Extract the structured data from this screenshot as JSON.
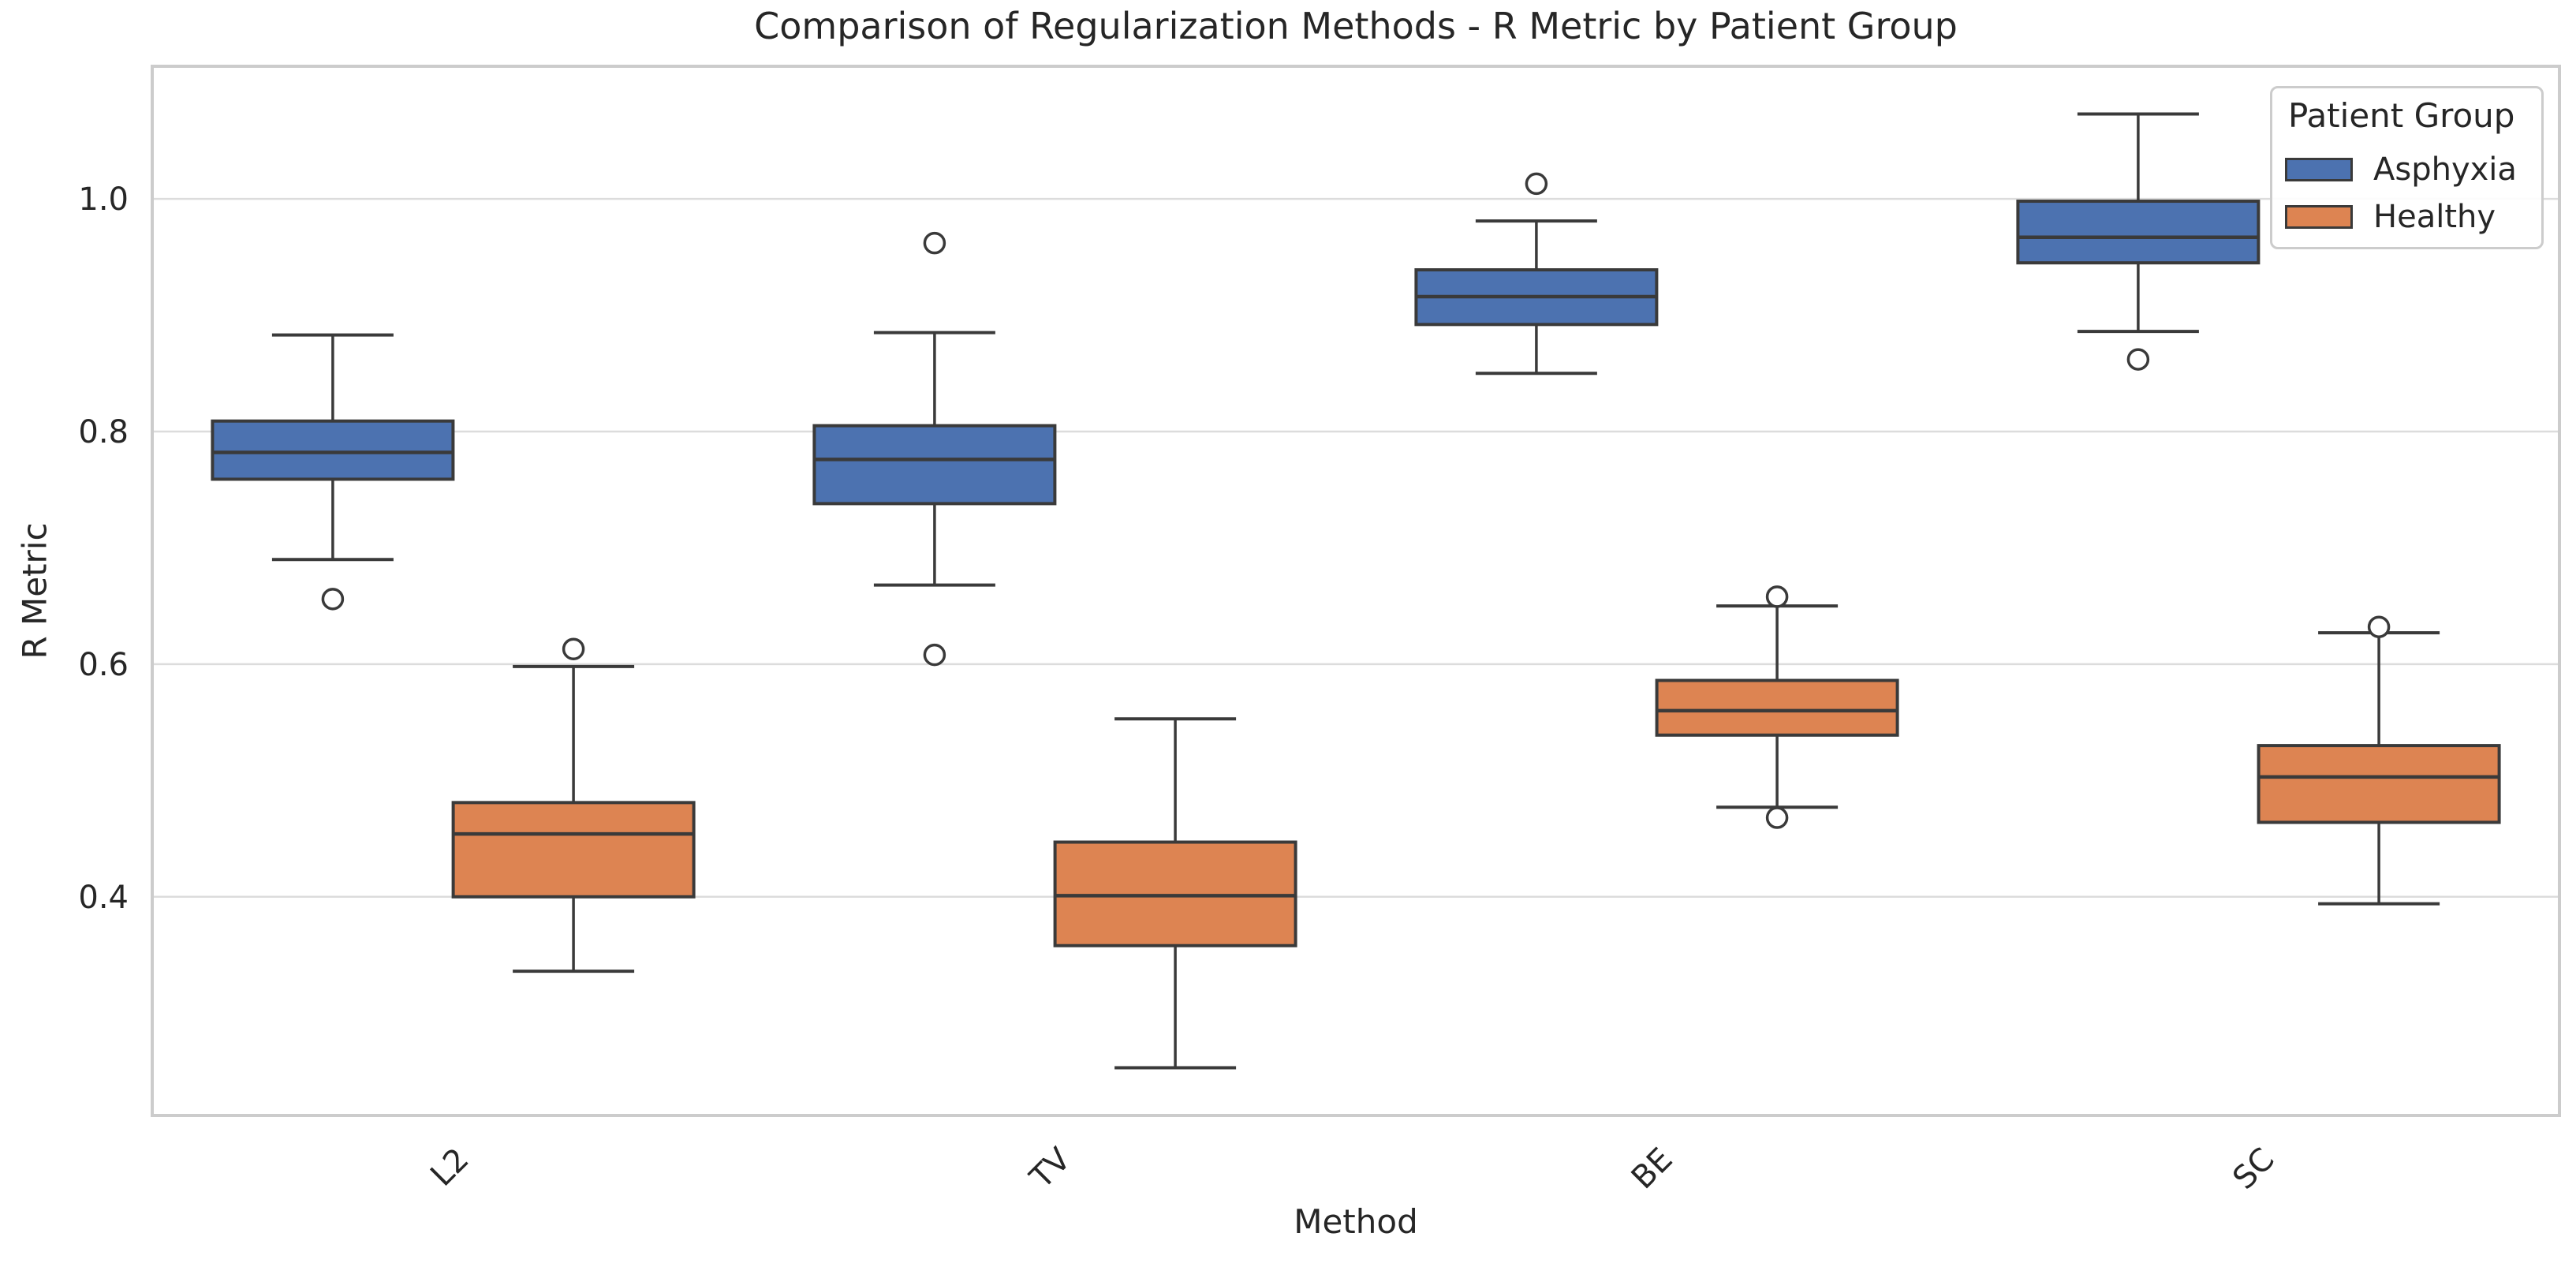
{
  "figure": {
    "background": "#FFFFFF"
  },
  "chart_data": {
    "type": "box",
    "title": "Comparison of Regularization Methods - R Metric by Patient Group",
    "xlabel": "Method",
    "ylabel": "R Metric",
    "categories": [
      "L2",
      "TV",
      "BE",
      "SC"
    ],
    "ylim": [
      0.212,
      1.114
    ],
    "yticks": [
      0.4,
      0.6,
      0.8,
      1.0
    ],
    "ytick_labels": [
      "0.4",
      "0.6",
      "0.8",
      "1.0"
    ],
    "grid": "horizontal-only",
    "legend": {
      "title": "Patient Group",
      "position": "upper-right",
      "entries": [
        {
          "label": "Asphyxia",
          "color": "#4C72B0"
        },
        {
          "label": "Healthy",
          "color": "#DD8452"
        }
      ]
    },
    "style": {
      "box_edge": "#3A3A3A",
      "grid_color": "#DCDCDC",
      "spine_color": "#CCCCCC",
      "text_color": "#262626",
      "background": "#FFFFFF"
    },
    "series": [
      {
        "name": "Asphyxia",
        "color": "#4C72B0",
        "boxes": [
          {
            "category": "L2",
            "whisker_low": 0.69,
            "q1": 0.759,
            "median": 0.782,
            "q3": 0.809,
            "whisker_high": 0.883,
            "outliers": [
              0.656
            ]
          },
          {
            "category": "TV",
            "whisker_low": 0.668,
            "q1": 0.738,
            "median": 0.776,
            "q3": 0.805,
            "whisker_high": 0.885,
            "outliers": [
              0.962,
              0.608
            ]
          },
          {
            "category": "BE",
            "whisker_low": 0.85,
            "q1": 0.892,
            "median": 0.916,
            "q3": 0.939,
            "whisker_high": 0.981,
            "outliers": [
              1.013
            ]
          },
          {
            "category": "SC",
            "whisker_low": 0.886,
            "q1": 0.945,
            "median": 0.967,
            "q3": 0.998,
            "whisker_high": 1.073,
            "outliers": [
              0.862
            ]
          }
        ]
      },
      {
        "name": "Healthy",
        "color": "#DD8452",
        "boxes": [
          {
            "category": "L2",
            "whisker_low": 0.336,
            "q1": 0.4,
            "median": 0.454,
            "q3": 0.481,
            "whisker_high": 0.598,
            "outliers": [
              0.613
            ]
          },
          {
            "category": "TV",
            "whisker_low": 0.253,
            "q1": 0.358,
            "median": 0.401,
            "q3": 0.447,
            "whisker_high": 0.553,
            "outliers": []
          },
          {
            "category": "BE",
            "whisker_low": 0.477,
            "q1": 0.539,
            "median": 0.56,
            "q3": 0.586,
            "whisker_high": 0.65,
            "outliers": [
              0.658,
              0.468
            ]
          },
          {
            "category": "SC",
            "whisker_low": 0.394,
            "q1": 0.464,
            "median": 0.503,
            "q3": 0.53,
            "whisker_high": 0.627,
            "outliers": [
              0.632
            ]
          }
        ]
      }
    ]
  }
}
